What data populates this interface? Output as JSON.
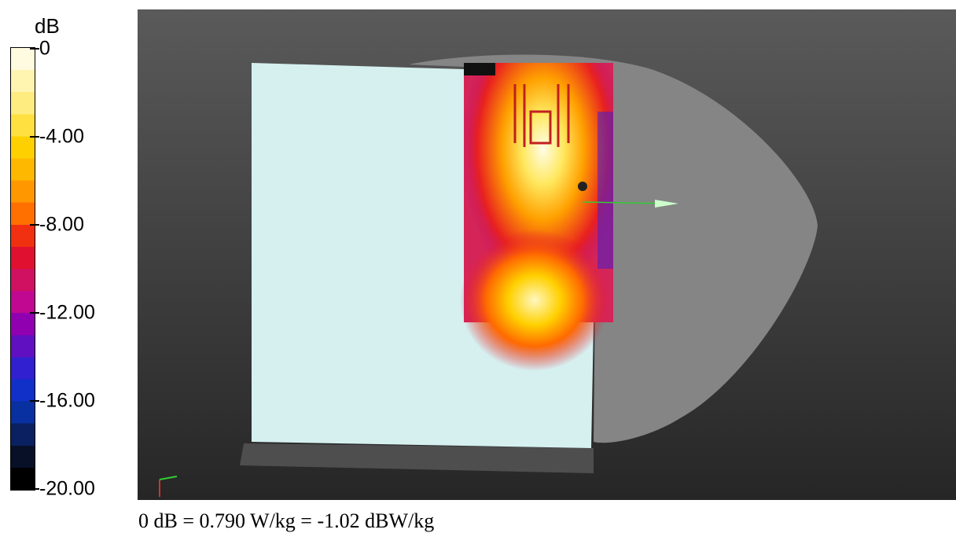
{
  "legend": {
    "unit": "dB",
    "ticks": [
      "0",
      "-4.00",
      "-8.00",
      "-12.00",
      "-16.00",
      "-20.00"
    ]
  },
  "caption": "0 dB = 0.790 W/kg = -1.02 dBW/kg"
}
